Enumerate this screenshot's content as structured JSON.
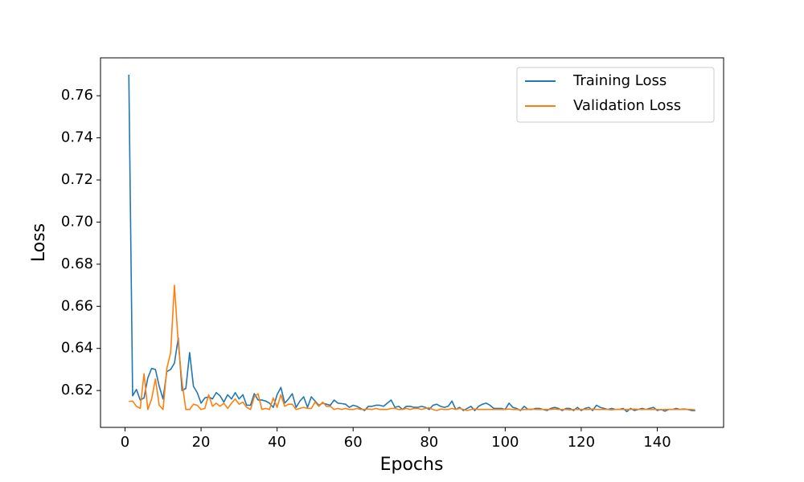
{
  "chart_data": {
    "type": "line",
    "xlabel": "Epochs",
    "ylabel": "Loss",
    "x": [
      1,
      2,
      3,
      4,
      5,
      6,
      7,
      8,
      9,
      10,
      11,
      12,
      13,
      14,
      15,
      16,
      17,
      18,
      19,
      20,
      21,
      22,
      23,
      24,
      25,
      26,
      27,
      28,
      29,
      30,
      31,
      32,
      33,
      34,
      35,
      36,
      37,
      38,
      39,
      40,
      41,
      42,
      43,
      44,
      45,
      46,
      47,
      48,
      49,
      50,
      51,
      52,
      53,
      54,
      55,
      56,
      57,
      58,
      59,
      60,
      61,
      62,
      63,
      64,
      65,
      66,
      67,
      68,
      69,
      70,
      71,
      72,
      73,
      74,
      75,
      76,
      77,
      78,
      79,
      80,
      81,
      82,
      83,
      84,
      85,
      86,
      87,
      88,
      89,
      90,
      91,
      92,
      93,
      94,
      95,
      96,
      97,
      98,
      99,
      100,
      101,
      102,
      103,
      104,
      105,
      106,
      107,
      108,
      109,
      110,
      111,
      112,
      113,
      114,
      115,
      116,
      117,
      118,
      119,
      120,
      121,
      122,
      123,
      124,
      125,
      126,
      127,
      128,
      129,
      130,
      131,
      132,
      133,
      134,
      135,
      136,
      137,
      138,
      139,
      140,
      141,
      142,
      143,
      144,
      145,
      146,
      147,
      148,
      149,
      150
    ],
    "series": [
      {
        "name": "Training Loss",
        "color": "#1f77b4",
        "values": [
          0.77,
          0.6175,
          0.6205,
          0.6155,
          0.6165,
          0.626,
          0.6305,
          0.63,
          0.622,
          0.616,
          0.629,
          0.63,
          0.633,
          0.645,
          0.62,
          0.621,
          0.638,
          0.622,
          0.619,
          0.614,
          0.6165,
          0.617,
          0.616,
          0.619,
          0.6175,
          0.6145,
          0.618,
          0.616,
          0.619,
          0.616,
          0.618,
          0.613,
          0.613,
          0.6185,
          0.6155,
          0.6155,
          0.615,
          0.614,
          0.612,
          0.618,
          0.6215,
          0.614,
          0.616,
          0.6185,
          0.612,
          0.615,
          0.617,
          0.612,
          0.617,
          0.615,
          0.613,
          0.614,
          0.6135,
          0.613,
          0.6155,
          0.614,
          0.6138,
          0.6135,
          0.612,
          0.613,
          0.6125,
          0.6115,
          0.6105,
          0.6125,
          0.6125,
          0.613,
          0.613,
          0.6125,
          0.614,
          0.6155,
          0.612,
          0.6125,
          0.611,
          0.6125,
          0.6125,
          0.612,
          0.612,
          0.6125,
          0.612,
          0.611,
          0.613,
          0.6135,
          0.6125,
          0.612,
          0.6125,
          0.615,
          0.611,
          0.612,
          0.6105,
          0.6115,
          0.6125,
          0.6105,
          0.6125,
          0.6135,
          0.614,
          0.613,
          0.6115,
          0.6115,
          0.6115,
          0.611,
          0.614,
          0.612,
          0.6115,
          0.6105,
          0.6125,
          0.611,
          0.611,
          0.6115,
          0.6115,
          0.611,
          0.6105,
          0.6115,
          0.612,
          0.6115,
          0.6105,
          0.6115,
          0.6115,
          0.6105,
          0.612,
          0.6105,
          0.6115,
          0.612,
          0.6105,
          0.613,
          0.612,
          0.6115,
          0.611,
          0.6115,
          0.611,
          0.611,
          0.6115,
          0.61,
          0.6115,
          0.6105,
          0.611,
          0.6115,
          0.611,
          0.6115,
          0.612,
          0.6105,
          0.611,
          0.6102,
          0.611,
          0.611,
          0.6115,
          0.611,
          0.6112,
          0.611,
          0.6105,
          0.6105
        ]
      },
      {
        "name": "Validation Loss",
        "color": "#ff7f0e",
        "values": [
          0.6148,
          0.615,
          0.6125,
          0.6115,
          0.628,
          0.611,
          0.616,
          0.6255,
          0.613,
          0.611,
          0.6305,
          0.638,
          0.67,
          0.6425,
          0.624,
          0.611,
          0.611,
          0.6135,
          0.613,
          0.611,
          0.6115,
          0.618,
          0.6125,
          0.614,
          0.6125,
          0.614,
          0.6115,
          0.614,
          0.616,
          0.6135,
          0.6145,
          0.612,
          0.611,
          0.617,
          0.6185,
          0.611,
          0.6115,
          0.611,
          0.6165,
          0.612,
          0.618,
          0.6125,
          0.6135,
          0.6135,
          0.611,
          0.6115,
          0.612,
          0.6115,
          0.6115,
          0.6145,
          0.6125,
          0.6145,
          0.6125,
          0.6125,
          0.611,
          0.6115,
          0.611,
          0.6115,
          0.611,
          0.611,
          0.6115,
          0.611,
          0.611,
          0.6112,
          0.611,
          0.6115,
          0.611,
          0.611,
          0.611,
          0.6115,
          0.6115,
          0.611,
          0.611,
          0.6115,
          0.611,
          0.6115,
          0.6115,
          0.611,
          0.6115,
          0.6118,
          0.611,
          0.6105,
          0.6112,
          0.611,
          0.611,
          0.6115,
          0.611,
          0.6115,
          0.611,
          0.6105,
          0.611,
          0.6112,
          0.611,
          0.611,
          0.611,
          0.611,
          0.611,
          0.611,
          0.611,
          0.611,
          0.6112,
          0.611,
          0.611,
          0.6108,
          0.611,
          0.611,
          0.6112,
          0.611,
          0.611,
          0.611,
          0.611,
          0.611,
          0.6112,
          0.611,
          0.611,
          0.611,
          0.6108,
          0.611,
          0.611,
          0.611,
          0.611,
          0.611,
          0.6112,
          0.611,
          0.611,
          0.611,
          0.611,
          0.6108,
          0.611,
          0.611,
          0.611,
          0.611,
          0.611,
          0.6112,
          0.611,
          0.611,
          0.611,
          0.611,
          0.611,
          0.611,
          0.6108,
          0.611,
          0.611,
          0.611,
          0.611,
          0.611,
          0.611,
          0.611,
          0.611,
          0.6108
        ]
      }
    ],
    "xlim": [
      -6.45,
      157.45
    ],
    "xticks": [
      0,
      20,
      40,
      60,
      80,
      100,
      120,
      140
    ],
    "ylim": [
      0.6025,
      0.778
    ],
    "yticks": [
      0.62,
      0.64,
      0.66,
      0.68,
      {
        "value": 0.7,
        "label": "0.70"
      },
      0.72,
      0.74,
      0.76
    ],
    "grid": false,
    "legend": "upper right"
  }
}
